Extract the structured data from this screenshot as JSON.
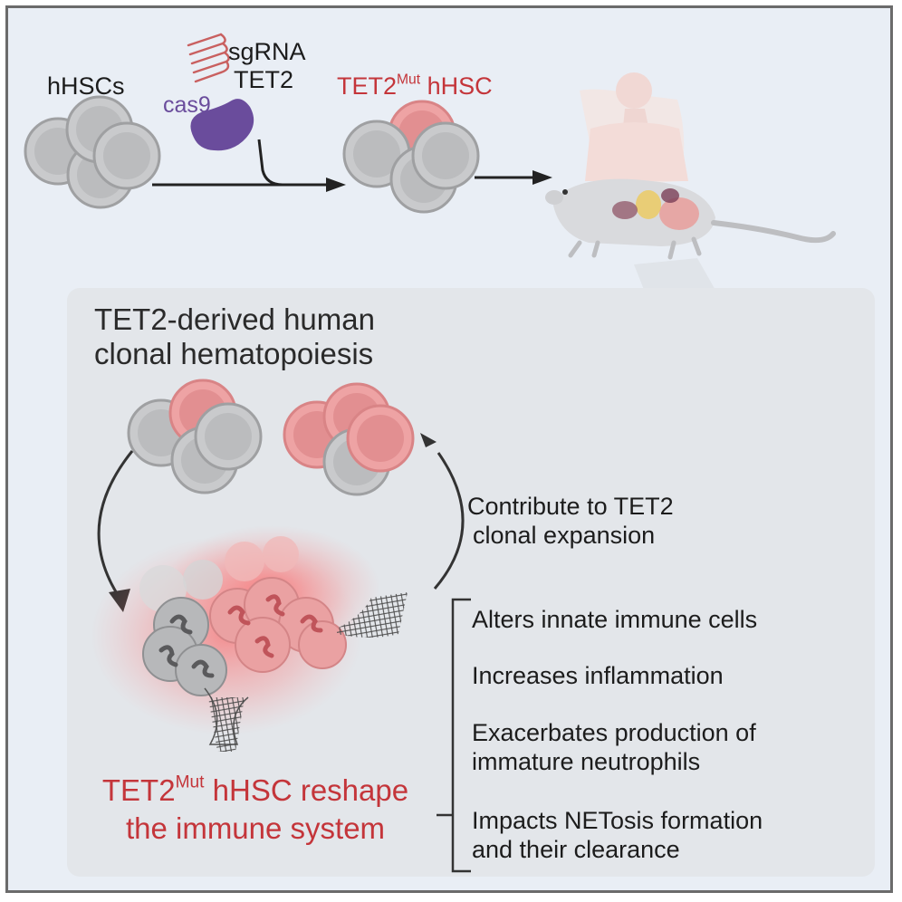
{
  "labels": {
    "hhscs": "hHSCs",
    "sgrna": "sgRNA",
    "tet2": "TET2",
    "cas9": "cas9",
    "mut_top_base": "TET2",
    "mut_top_sup": "Mut",
    "mut_top_rest": " hHSC",
    "panel_title_line1": "TET2-derived human",
    "panel_title_line2": "clonal hematopoiesis",
    "contribute_line1": "Contribute to TET2",
    "contribute_line2": "clonal expansion",
    "reshape_base": "TET2",
    "reshape_sup": "Mut",
    "reshape_rest": " hHSC reshape",
    "reshape_line2": "the immune system"
  },
  "effects": [
    {
      "line1": "Alters innate immune cells",
      "line2": ""
    },
    {
      "line1": "Increases inflammation",
      "line2": ""
    },
    {
      "line1": "Exacerbates production of",
      "line2": "immature neutrophils"
    },
    {
      "line1": "Impacts NETosis formation",
      "line2": "and their clearance"
    }
  ],
  "colors": {
    "accent_red": "#c4353a",
    "cas9_purple": "#6a4c9c",
    "background": "#e9eef5",
    "panel": "#e3e6ea"
  }
}
